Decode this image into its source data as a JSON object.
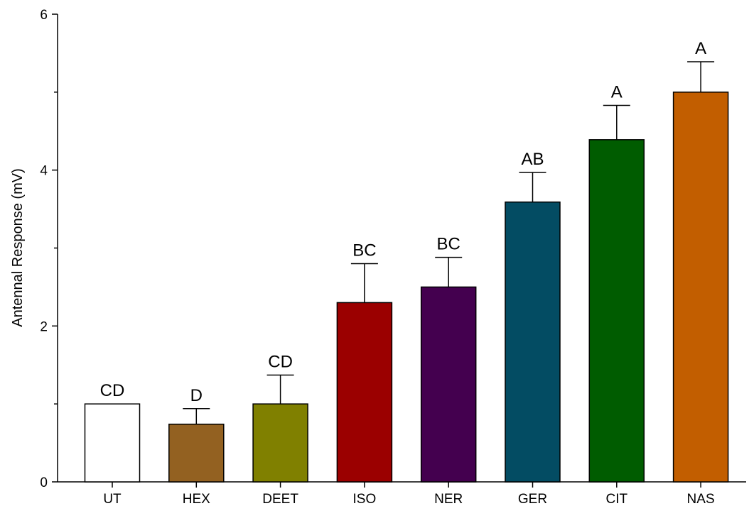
{
  "chart_data": {
    "type": "bar",
    "title": "",
    "xlabel": "",
    "ylabel": "Antennal Response (mV)",
    "ylim": [
      0,
      6
    ],
    "yticks": [
      0,
      2,
      4,
      6
    ],
    "grid": false,
    "categories": [
      "UT",
      "HEX",
      "DEET",
      "ISO",
      "NER",
      "GER",
      "CIT",
      "NAS"
    ],
    "values": [
      1.0,
      0.74,
      1.0,
      2.3,
      2.5,
      3.59,
      4.39,
      5.0
    ],
    "errors": [
      0.0,
      0.2,
      0.37,
      0.5,
      0.38,
      0.38,
      0.44,
      0.39
    ],
    "significance": [
      "CD",
      "D",
      "CD",
      "BC",
      "BC",
      "AB",
      "A",
      "A"
    ],
    "colors": [
      "#ffffff",
      "#936121",
      "#808000",
      "#9b0000",
      "#44004f",
      "#034c63",
      "#005c00",
      "#c25e00"
    ]
  }
}
